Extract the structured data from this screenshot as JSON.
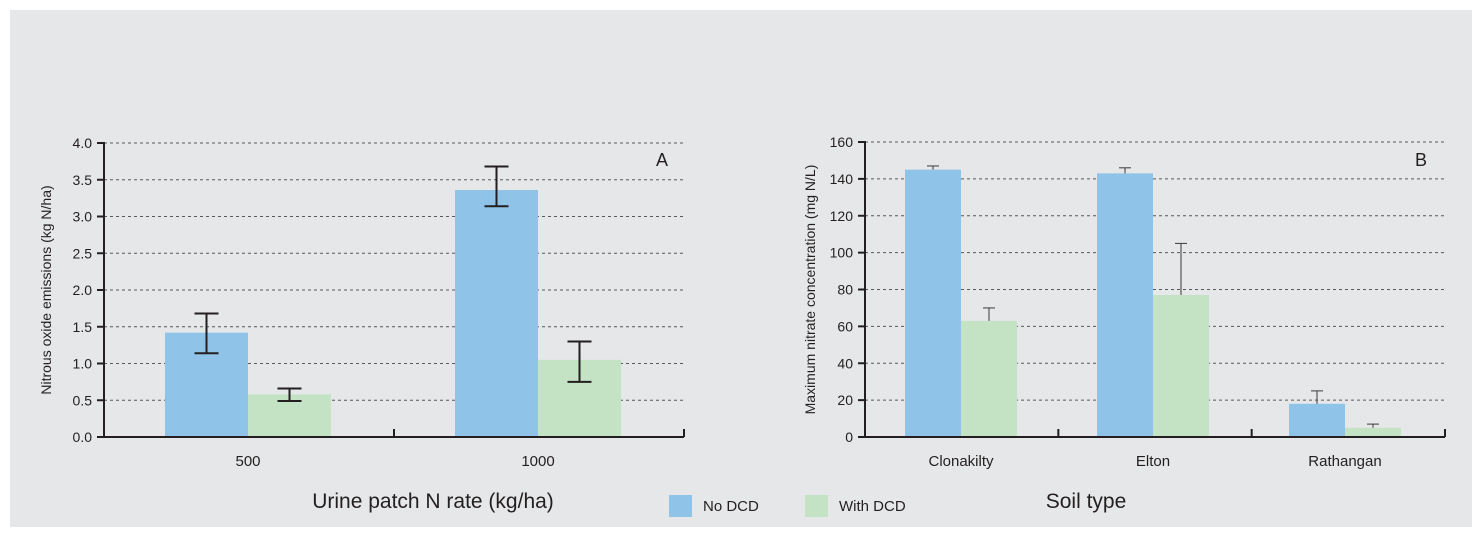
{
  "colors": {
    "no_dcd": "#8fc3e7",
    "with_dcd": "#c4e2c4",
    "axis": "#231f20",
    "grid": "#58595b",
    "background": "#e6e7e8"
  },
  "legend": {
    "items": [
      {
        "label": "No DCD",
        "color": "#8fc3e7"
      },
      {
        "label": "With DCD",
        "color": "#c4e2c4"
      }
    ]
  },
  "chart_data": [
    {
      "type": "bar",
      "panel_label": "A",
      "title": "",
      "xlabel": "Urine patch N rate (kg/ha)",
      "ylabel": "Nitrous oxide emissions (kg N/ha)",
      "ylim": [
        0,
        4.0
      ],
      "yticks": [
        "0.0",
        "0.5",
        "1.0",
        "1.5",
        "2.0",
        "2.5",
        "3.0",
        "3.5",
        "4.0"
      ],
      "grid": true,
      "categories": [
        "500",
        "1000"
      ],
      "series": [
        {
          "name": "No DCD",
          "values": [
            1.42,
            3.36
          ],
          "error_low": [
            1.14,
            3.14
          ],
          "error_high": [
            1.68,
            3.68
          ]
        },
        {
          "name": "With DCD",
          "values": [
            0.58,
            1.05
          ],
          "error_low": [
            0.49,
            0.75
          ],
          "error_high": [
            0.66,
            1.3
          ]
        }
      ],
      "error_style": "both"
    },
    {
      "type": "bar",
      "panel_label": "B",
      "title": "",
      "xlabel": "Soil type",
      "ylabel": "Maximum nitrate concentration (mg N/L)",
      "ylim": [
        0,
        160
      ],
      "yticks": [
        "0",
        "20",
        "40",
        "60",
        "80",
        "100",
        "120",
        "140",
        "160"
      ],
      "grid": true,
      "categories": [
        "Clonakilty",
        "Elton",
        "Rathangan"
      ],
      "series": [
        {
          "name": "No DCD",
          "values": [
            145,
            143,
            18
          ],
          "error_high": [
            147,
            146,
            25
          ]
        },
        {
          "name": "With DCD",
          "values": [
            63,
            77,
            5
          ],
          "error_high": [
            70,
            105,
            7
          ]
        }
      ],
      "error_style": "upper"
    }
  ]
}
